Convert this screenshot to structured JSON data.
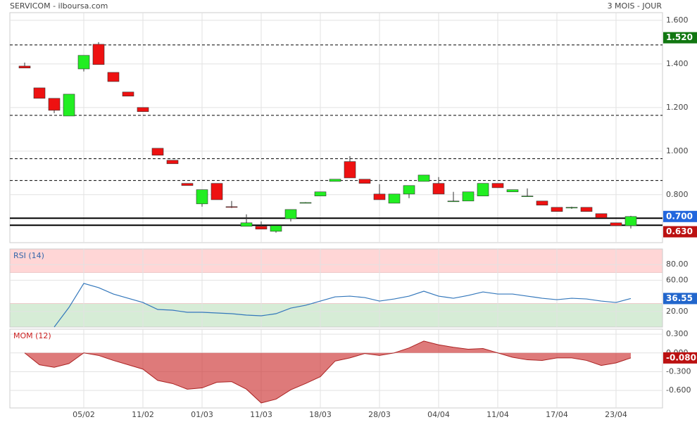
{
  "header": {
    "title": "SERVICOM - ilboursa.com",
    "period": "3 MOIS - JOUR"
  },
  "chart_data": [
    {
      "type": "candlestick",
      "categories": [
        null,
        null,
        null,
        null,
        "05/02",
        null,
        null,
        null,
        "11/02",
        null,
        null,
        null,
        "01/03",
        null,
        null,
        null,
        "11/03",
        null,
        null,
        null,
        "18/03",
        null,
        null,
        null,
        "28/03",
        null,
        null,
        null,
        "04/04",
        null,
        null,
        null,
        "11/04",
        null,
        null,
        null,
        "17/04",
        null,
        null,
        null,
        "23/04",
        null
      ],
      "open": [
        1.39,
        1.29,
        1.242,
        1.161,
        1.377,
        1.49,
        1.361,
        1.271,
        1.2,
        1.013,
        0.958,
        0.852,
        0.758,
        0.852,
        0.745,
        0.655,
        0.655,
        0.632,
        0.69,
        0.762,
        0.794,
        0.861,
        0.952,
        0.871,
        0.803,
        0.761,
        0.803,
        0.861,
        0.852,
        0.771,
        0.771,
        0.794,
        0.852,
        0.813,
        0.794,
        0.771,
        0.742,
        0.742,
        0.742,
        0.713,
        0.671,
        0.658
      ],
      "high": [
        1.406,
        1.29,
        1.242,
        1.261,
        1.439,
        1.5,
        1.361,
        1.271,
        1.2,
        1.013,
        0.958,
        0.852,
        0.823,
        0.852,
        0.771,
        0.71,
        0.677,
        0.658,
        0.732,
        0.766,
        0.813,
        0.871,
        0.977,
        0.871,
        0.848,
        0.803,
        0.842,
        0.89,
        0.881,
        0.813,
        0.813,
        0.852,
        0.852,
        0.823,
        0.829,
        0.771,
        0.742,
        0.745,
        0.742,
        0.713,
        0.671,
        0.703
      ],
      "low": [
        1.381,
        1.242,
        1.174,
        1.161,
        1.365,
        1.397,
        1.319,
        1.252,
        1.181,
        0.981,
        0.942,
        0.842,
        0.745,
        0.777,
        0.739,
        0.655,
        0.642,
        0.626,
        0.677,
        0.762,
        0.794,
        0.861,
        0.877,
        0.852,
        0.777,
        0.761,
        0.784,
        0.861,
        0.803,
        0.771,
        0.771,
        0.794,
        0.832,
        0.813,
        0.794,
        0.752,
        0.723,
        0.735,
        0.723,
        0.694,
        0.658,
        0.645
      ],
      "close": [
        1.381,
        1.242,
        1.187,
        1.261,
        1.439,
        1.397,
        1.319,
        1.252,
        1.181,
        0.981,
        0.942,
        0.842,
        0.823,
        0.777,
        0.743,
        0.671,
        0.642,
        0.658,
        0.732,
        0.764,
        0.813,
        0.871,
        0.877,
        0.852,
        0.777,
        0.803,
        0.842,
        0.89,
        0.803,
        0.771,
        0.813,
        0.852,
        0.832,
        0.823,
        0.794,
        0.752,
        0.723,
        0.742,
        0.723,
        0.694,
        0.658,
        0.7
      ],
      "up_color": "#22ee22",
      "down_color": "#ee1111",
      "ylim": [
        0.58,
        1.635
      ],
      "yticks": [
        {
          "value": 1.6,
          "label": "1.600"
        },
        {
          "value": 1.4,
          "label": "1.400"
        },
        {
          "value": 1.2,
          "label": "1.200"
        },
        {
          "value": 1.0,
          "label": "1.000"
        },
        {
          "value": 0.8,
          "label": "0.800"
        }
      ],
      "levels": [
        {
          "value": 1.487,
          "style": "dashed"
        },
        {
          "value": 1.164,
          "style": "dashed"
        },
        {
          "value": 0.965,
          "style": "dashed"
        },
        {
          "value": 0.865,
          "style": "dashed"
        },
        {
          "value": 0.692,
          "style": "solid"
        },
        {
          "value": 0.66,
          "style": "solid"
        }
      ],
      "markers": [
        {
          "value": 1.52,
          "label": "1.520",
          "color": "#117711"
        },
        {
          "value": 0.7,
          "label": "0.700",
          "color": "#2266dd"
        },
        {
          "value": 0.63,
          "label": "0.630",
          "color": "#bb1111"
        }
      ]
    },
    {
      "type": "line",
      "title": "RSI (14)",
      "color": "#3377bb",
      "values": [
        null,
        null,
        0,
        25.2,
        55.9,
        50.5,
        42.3,
        36.9,
        31.5,
        22.5,
        21.6,
        18.9,
        18.9,
        18.0,
        17.1,
        15.3,
        14.4,
        17.1,
        24.3,
        27.9,
        33.3,
        38.7,
        39.6,
        37.8,
        33.3,
        36.0,
        39.6,
        45.9,
        39.6,
        36.9,
        40.5,
        45.0,
        42.3,
        42.3,
        39.6,
        36.9,
        35.1,
        36.9,
        36.0,
        33.3,
        31.5,
        36.55
      ],
      "ylim": [
        0,
        100
      ],
      "yticks": [
        {
          "value": 80,
          "label": "80.00"
        },
        {
          "value": 60,
          "label": "60.00"
        },
        {
          "value": 20,
          "label": "20.00"
        }
      ],
      "zones": [
        {
          "from": 70,
          "to": 100,
          "color": "#ffd6d6"
        },
        {
          "from": 0,
          "to": 30,
          "color": "#d6ecd6"
        }
      ],
      "markers": [
        {
          "value": 36.55,
          "label": "36.55",
          "color": "#2266cc"
        }
      ]
    },
    {
      "type": "area",
      "title": "MOM (12)",
      "color": "#cc3333",
      "values": [
        0,
        -0.19,
        -0.23,
        -0.17,
        0,
        -0.04,
        -0.12,
        -0.19,
        -0.26,
        -0.44,
        -0.49,
        -0.58,
        -0.56,
        -0.47,
        -0.46,
        -0.58,
        -0.8,
        -0.74,
        -0.59,
        -0.49,
        -0.38,
        -0.13,
        -0.08,
        -0.01,
        -0.04,
        0,
        0.08,
        0.19,
        0.13,
        0.09,
        0.06,
        0.07,
        0,
        -0.07,
        -0.11,
        -0.12,
        -0.08,
        -0.08,
        -0.12,
        -0.2,
        -0.16,
        -0.08
      ],
      "ylim": [
        -0.88,
        0.38
      ],
      "yticks": [
        {
          "value": 0.3,
          "label": "0.300"
        },
        {
          "value": 0,
          "label": "0.000"
        },
        {
          "value": -0.3,
          "label": "-0.300"
        },
        {
          "value": -0.6,
          "label": "-0.600"
        }
      ],
      "markers": [
        {
          "value": -0.08,
          "label": "-0.080",
          "color": "#bb1111"
        }
      ]
    }
  ]
}
